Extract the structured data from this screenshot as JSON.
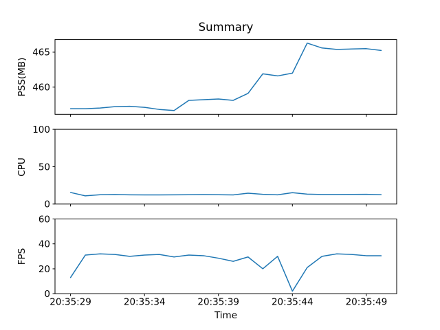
{
  "figure": {
    "title": "Summary",
    "background": "#ffffff",
    "text_color": "#000000",
    "line_color": "#1f77b4"
  },
  "x_axis": {
    "label": "Time",
    "tick_indices": [
      0,
      5,
      10,
      15,
      20
    ],
    "tick_labels": [
      "20:35:29",
      "20:35:34",
      "20:35:39",
      "20:35:44",
      "20:35:49"
    ]
  },
  "chart_data": [
    {
      "type": "line",
      "ylabel": "PSS(MB)",
      "x": [
        "20:35:29",
        "20:35:30",
        "20:35:31",
        "20:35:32",
        "20:35:33",
        "20:35:34",
        "20:35:35",
        "20:35:36",
        "20:35:37",
        "20:35:38",
        "20:35:39",
        "20:35:40",
        "20:35:41",
        "20:35:42",
        "20:35:43",
        "20:35:44",
        "20:35:45",
        "20:35:46",
        "20:35:47",
        "20:35:48",
        "20:35:49",
        "20:35:50"
      ],
      "values": [
        456.9,
        456.9,
        457.0,
        457.2,
        457.25,
        457.1,
        456.8,
        456.65,
        458.1,
        458.2,
        458.3,
        458.1,
        459.1,
        461.9,
        461.6,
        462.0,
        466.3,
        465.6,
        465.4,
        465.45,
        465.5,
        465.25
      ],
      "ylim": [
        456.1,
        466.8
      ],
      "yticks": [
        460,
        465
      ],
      "grid": false,
      "legend": null
    },
    {
      "type": "line",
      "ylabel": "CPU",
      "values": [
        15.5,
        11,
        12.5,
        12.7,
        12.4,
        12.2,
        12.2,
        12.3,
        12.5,
        12.7,
        12.5,
        12.2,
        14.5,
        13,
        12.4,
        15.2,
        13.3,
        12.8,
        12.8,
        12.9,
        13,
        12.5
      ],
      "ylim": [
        0,
        100
      ],
      "yticks": [
        0,
        50,
        100
      ],
      "grid": false,
      "legend": null
    },
    {
      "type": "line",
      "ylabel": "FPS",
      "values": [
        13,
        31,
        32,
        31.5,
        30,
        31,
        31.5,
        29.5,
        31,
        30.5,
        28.5,
        26,
        29.5,
        20,
        30,
        2,
        21,
        30,
        32,
        31.5,
        30.5,
        30.5
      ],
      "ylim": [
        0,
        60
      ],
      "yticks": [
        0,
        20,
        40,
        60
      ],
      "grid": false,
      "legend": null
    }
  ]
}
